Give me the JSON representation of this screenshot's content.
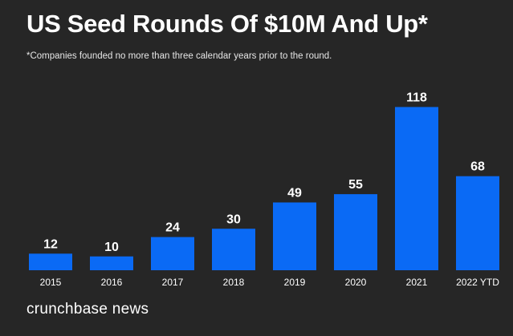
{
  "title": "US Seed Rounds Of $10M And Up*",
  "subtitle": "*Companies founded no more than three calendar years prior to the round.",
  "brand": "crunchbase news",
  "colors": {
    "background": "#262626",
    "bar": "#0a6af5",
    "text": "#ffffff"
  },
  "chart_data": {
    "type": "bar",
    "title": "US Seed Rounds Of $10M And Up*",
    "subtitle": "*Companies founded no more than three calendar years prior to the round.",
    "categories": [
      "2015",
      "2016",
      "2017",
      "2018",
      "2019",
      "2020",
      "2021",
      "2022 YTD"
    ],
    "values": [
      12,
      10,
      24,
      30,
      49,
      55,
      118,
      68
    ],
    "xlabel": "",
    "ylabel": "",
    "ylim": [
      0,
      120
    ],
    "grid": false,
    "legend": "none"
  }
}
